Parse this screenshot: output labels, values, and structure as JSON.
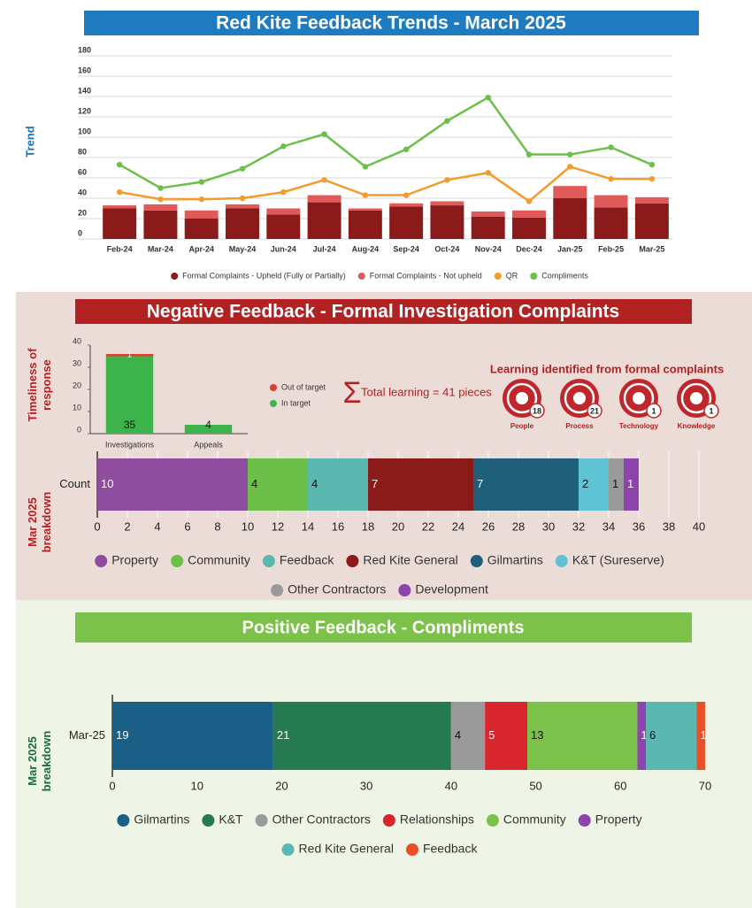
{
  "chart_data": [
    {
      "type": "combo",
      "title": "Red Kite Feedback Trends - March 2025",
      "ylabel": "Trend",
      "categories": [
        "Feb-24",
        "Mar-24",
        "Apr-24",
        "May-24",
        "Jun-24",
        "Jul-24",
        "Aug-24",
        "Sep-24",
        "Oct-24",
        "Nov-24",
        "Dec-24",
        "Jan-25",
        "Feb-25",
        "Mar-25"
      ],
      "series": [
        {
          "name": "Formal Complaints - Upheld (Fully or Partially)",
          "type": "bar",
          "color": "#8b1a1a",
          "values": [
            30,
            28,
            20,
            30,
            24,
            36,
            28,
            32,
            33,
            22,
            21,
            40,
            31,
            35
          ]
        },
        {
          "name": "Formal Complaints - Not upheld",
          "type": "bar",
          "color": "#e05a5a",
          "values": [
            3,
            6,
            8,
            4,
            6,
            7,
            2,
            3,
            4,
            5,
            7,
            12,
            12,
            6
          ]
        },
        {
          "name": "QR",
          "type": "line",
          "color": "#f39c2b",
          "values": [
            46,
            39,
            39,
            40,
            46,
            58,
            43,
            43,
            58,
            65,
            37,
            71,
            59,
            59
          ]
        },
        {
          "name": "Compliments",
          "type": "line",
          "color": "#6cc04a",
          "values": [
            73,
            50,
            56,
            69,
            91,
            103,
            71,
            88,
            116,
            139,
            83,
            83,
            90,
            73
          ]
        }
      ],
      "ylim": [
        0,
        180
      ],
      "yticks": [
        0,
        20,
        40,
        60,
        80,
        100,
        120,
        140,
        160,
        180
      ],
      "grid": true,
      "legend": "bottom"
    },
    {
      "type": "bar",
      "ylabel": "Timeliness of response",
      "categories": [
        "Investigations",
        "Appeals"
      ],
      "series": [
        {
          "name": "In target",
          "color": "#3cb44b",
          "values": [
            35,
            4
          ]
        },
        {
          "name": "Out of target",
          "color": "#e03c31",
          "values": [
            1,
            null
          ]
        }
      ],
      "ylim": [
        0,
        40
      ],
      "yticks": [
        0,
        10,
        20,
        30,
        40
      ],
      "legend": "right"
    },
    {
      "type": "barh",
      "ylabel": "Mar 2025 breakdown",
      "categories": [
        "Count"
      ],
      "series": [
        {
          "name": "Property",
          "color": "#8e4d9e",
          "values": [
            10
          ]
        },
        {
          "name": "Community",
          "color": "#6cc04a",
          "values": [
            4
          ]
        },
        {
          "name": "Feedback",
          "color": "#5bb8b0",
          "values": [
            4
          ]
        },
        {
          "name": "Red Kite General",
          "color": "#8b1a1a",
          "values": [
            7
          ]
        },
        {
          "name": "Gilmartins",
          "color": "#1f5f7a",
          "values": [
            7
          ]
        },
        {
          "name": "K&T (Sureserve)",
          "color": "#5fc3d3",
          "values": [
            2
          ]
        },
        {
          "name": "Other Contractors",
          "color": "#9a9a9a",
          "values": [
            1
          ]
        },
        {
          "name": "Development",
          "color": "#8e44ad",
          "values": [
            1
          ]
        }
      ],
      "xlim": [
        0,
        40
      ],
      "xticks": [
        0,
        2,
        4,
        6,
        8,
        10,
        12,
        14,
        16,
        18,
        20,
        22,
        24,
        26,
        28,
        30,
        32,
        34,
        36,
        38,
        40
      ],
      "grid": true,
      "legend": "bottom"
    },
    {
      "type": "barh",
      "ylabel": "Mar 2025 breakdown",
      "categories": [
        "Mar-25"
      ],
      "series": [
        {
          "name": "Gilmartins",
          "color": "#1a5f85",
          "values": [
            19
          ]
        },
        {
          "name": "K&T",
          "color": "#267a50",
          "values": [
            21
          ]
        },
        {
          "name": "Other Contractors",
          "color": "#9a9a9a",
          "values": [
            4
          ]
        },
        {
          "name": "Relationships",
          "color": "#d9262e",
          "values": [
            5
          ]
        },
        {
          "name": "Community",
          "color": "#7cc24a",
          "values": [
            13
          ]
        },
        {
          "name": "Property",
          "color": "#8e44ad",
          "values": [
            1
          ]
        },
        {
          "name": "Red Kite General",
          "color": "#5bb8b0",
          "values": [
            6
          ]
        },
        {
          "name": "Feedback",
          "color": "#e8502a",
          "values": [
            1
          ]
        }
      ],
      "xlim": [
        0,
        70
      ],
      "xticks": [
        0,
        10,
        20,
        30,
        40,
        50,
        60,
        70
      ],
      "grid": false,
      "legend": "bottom"
    }
  ],
  "sections": {
    "negative": "Negative Feedback - Formal Investigation Complaints",
    "positive": "Positive Feedback - Compliments"
  },
  "learning": {
    "total_label": "Total learning = 41 pieces",
    "title": "Learning identified from formal complaints",
    "items": [
      {
        "label": "People",
        "count": 18
      },
      {
        "label": "Process",
        "count": 21
      },
      {
        "label": "Technology",
        "count": 1
      },
      {
        "label": "Knowledge",
        "count": 1
      }
    ]
  }
}
